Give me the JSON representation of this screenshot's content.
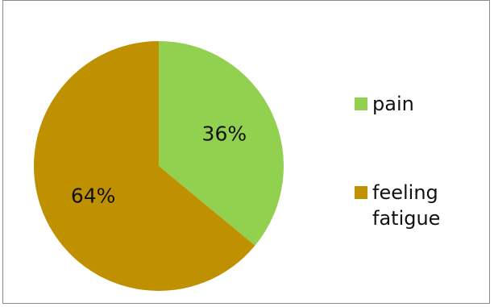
{
  "chart_data": {
    "type": "pie",
    "categories": [
      "pain",
      "feeling fatigue"
    ],
    "values": [
      36,
      64
    ],
    "labels": [
      "36%",
      "64%"
    ],
    "colors": [
      "#92d050",
      "#bf9000"
    ],
    "title": "",
    "legend_placement": "right"
  },
  "legend": {
    "items": [
      {
        "label": "pain",
        "color": "#92d050"
      },
      {
        "label": "feeling fatigue",
        "color": "#bf9000"
      }
    ]
  }
}
